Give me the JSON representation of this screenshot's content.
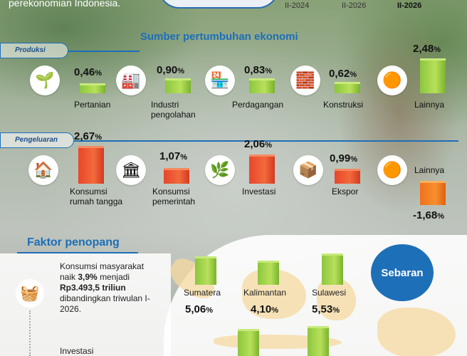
{
  "header": {
    "intro_text": "perekonomian Indonesia.",
    "periods": [
      "II-2024",
      "II-2026",
      "II-2026"
    ]
  },
  "sources": {
    "title": "Sumber pertumbuhan ekonomi",
    "production": {
      "label": "Produksi",
      "items": [
        {
          "name": "Pertanian",
          "value": "0,46",
          "unit": "%",
          "icon": "plant-bowl-icon",
          "growth": 0.46
        },
        {
          "name": "Industri pengolahan",
          "value": "0,90",
          "unit": "%",
          "icon": "factory-crate-icon",
          "growth": 0.9
        },
        {
          "name": "Perdagangan",
          "value": "0,83",
          "unit": "%",
          "icon": "shop-icon",
          "growth": 0.83
        },
        {
          "name": "Konstruksi",
          "value": "0,62",
          "unit": "%",
          "icon": "brick-wall-icon",
          "growth": 0.62
        },
        {
          "name": "Lainnya",
          "value": "2,48",
          "unit": "%",
          "icon": "hexagon-cluster-icon",
          "growth": 2.48
        }
      ]
    },
    "expenditure": {
      "label": "Pengeluaran",
      "items": [
        {
          "name": "Konsumsi rumah tangga",
          "value": "2,67",
          "unit": "%",
          "icon": "house-icon",
          "growth": 2.67
        },
        {
          "name": "Konsumsi pemerintah",
          "value": "1,07",
          "unit": "%",
          "icon": "government-building-icon",
          "growth": 1.07
        },
        {
          "name": "Investasi",
          "value": "2,06",
          "unit": "%",
          "icon": "seedling-coin-icon",
          "growth": 2.06
        },
        {
          "name": "Ekspor",
          "value": "0,99",
          "unit": "%",
          "icon": "export-box-icon",
          "growth": 0.99
        },
        {
          "name": "Lainnya",
          "value": "-1,68",
          "unit": "%",
          "icon": "hexagon-cluster-icon",
          "growth": -1.68
        }
      ]
    }
  },
  "factors": {
    "title": "Faktor penopang",
    "consumption_text_1": "Konsumsi masyarakat naik",
    "consumption_pct": "3,9%",
    "consumption_mid": "menjadi",
    "consumption_value": "Rp3.493,5 triliun",
    "consumption_text_2": "dibandingkan triwulan I-2026.",
    "investment_text": "Investasi"
  },
  "distribution": {
    "title": "Sebaran",
    "regions": [
      {
        "name": "Sumatera",
        "value": "5,06",
        "unit": "%",
        "growth": 5.06
      },
      {
        "name": "Kalimantan",
        "value": "4,10",
        "unit": "%",
        "growth": 4.1
      },
      {
        "name": "Sulawesi",
        "value": "5,53",
        "unit": "%",
        "growth": 5.53
      }
    ]
  },
  "colors": {
    "accent_blue": "#1d6fb8",
    "green_bar": "#8cc63f",
    "red_bar": "#e8462a",
    "orange_bar": "#f0701e"
  }
}
